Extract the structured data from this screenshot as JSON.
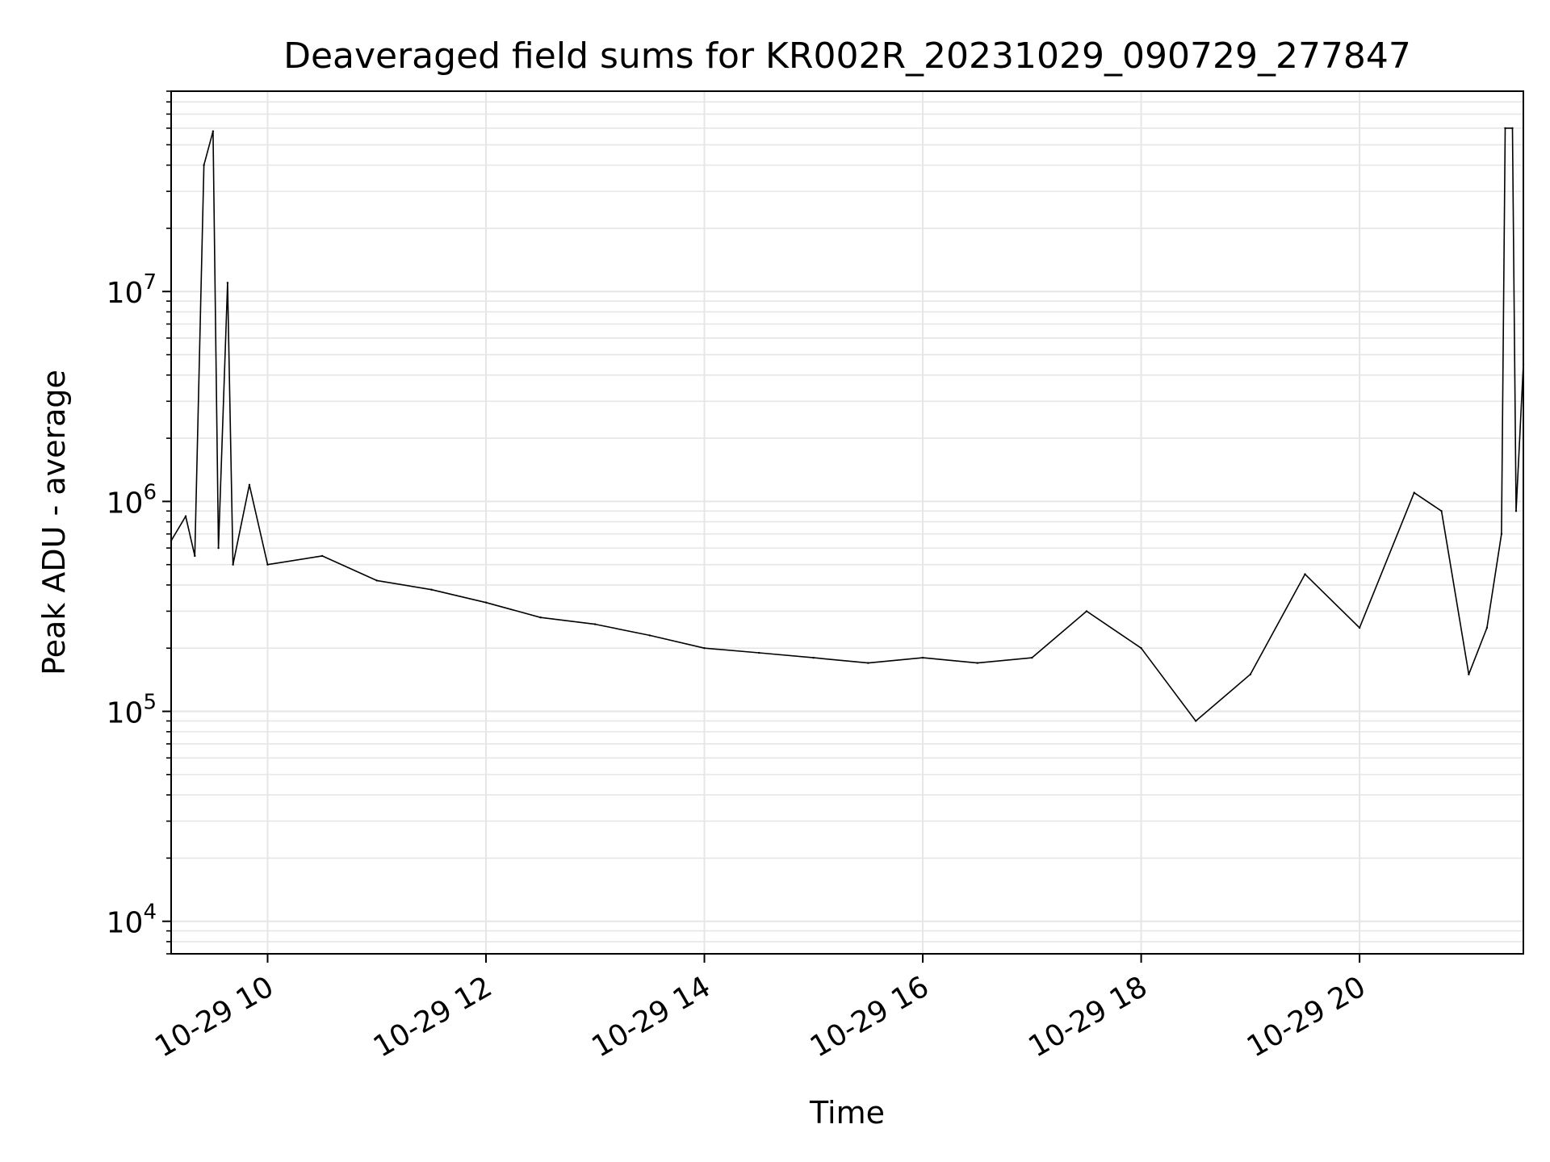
{
  "chart_data": {
    "type": "line",
    "title": "Deaveraged field sums for KR002R_20231029_090729_277847",
    "xlabel": "Time",
    "ylabel": "Peak ADU - average",
    "x_scale": "time",
    "y_scale": "log",
    "xlim": [
      "2023-10-29 09:07",
      "2023-10-29 21:30"
    ],
    "ylim": [
      7000,
      90000000
    ],
    "grid": true,
    "legend": "none",
    "colors": {
      "line": "#000000",
      "grid": "#e6e6e6",
      "axes": "#000000"
    },
    "x_ticks": [
      {
        "value": "2023-10-29 10:00",
        "label": "10-29 10"
      },
      {
        "value": "2023-10-29 12:00",
        "label": "10-29 12"
      },
      {
        "value": "2023-10-29 14:00",
        "label": "10-29 14"
      },
      {
        "value": "2023-10-29 16:00",
        "label": "10-29 16"
      },
      {
        "value": "2023-10-29 18:00",
        "label": "10-29 18"
      },
      {
        "value": "2023-10-29 20:00",
        "label": "10-29 20"
      }
    ],
    "y_ticks": [
      {
        "value": 10000,
        "base": "10",
        "exp": "4"
      },
      {
        "value": 100000,
        "base": "10",
        "exp": "5"
      },
      {
        "value": 1000000,
        "base": "10",
        "exp": "6"
      },
      {
        "value": 10000000,
        "base": "10",
        "exp": "7"
      }
    ],
    "series": [
      {
        "points": [
          {
            "t": "2023-10-29 09:07",
            "y": 650000
          },
          {
            "t": "2023-10-29 09:15",
            "y": 850000
          },
          {
            "t": "2023-10-29 09:20",
            "y": 550000
          },
          {
            "t": "2023-10-29 09:25",
            "y": 40000000
          },
          {
            "t": "2023-10-29 09:30",
            "y": 58000000
          },
          {
            "t": "2023-10-29 09:33",
            "y": 600000
          },
          {
            "t": "2023-10-29 09:38",
            "y": 11000000
          },
          {
            "t": "2023-10-29 09:41",
            "y": 500000
          },
          {
            "t": "2023-10-29 09:50",
            "y": 1200000
          },
          {
            "t": "2023-10-29 10:00",
            "y": 500000
          },
          {
            "t": "2023-10-29 10:30",
            "y": 550000
          },
          {
            "t": "2023-10-29 11:00",
            "y": 420000
          },
          {
            "t": "2023-10-29 11:30",
            "y": 380000
          },
          {
            "t": "2023-10-29 12:00",
            "y": 330000
          },
          {
            "t": "2023-10-29 12:30",
            "y": 280000
          },
          {
            "t": "2023-10-29 13:00",
            "y": 260000
          },
          {
            "t": "2023-10-29 13:30",
            "y": 230000
          },
          {
            "t": "2023-10-29 14:00",
            "y": 200000
          },
          {
            "t": "2023-10-29 14:30",
            "y": 190000
          },
          {
            "t": "2023-10-29 15:00",
            "y": 180000
          },
          {
            "t": "2023-10-29 15:30",
            "y": 170000
          },
          {
            "t": "2023-10-29 16:00",
            "y": 180000
          },
          {
            "t": "2023-10-29 16:30",
            "y": 170000
          },
          {
            "t": "2023-10-29 17:00",
            "y": 180000
          },
          {
            "t": "2023-10-29 17:30",
            "y": 300000
          },
          {
            "t": "2023-10-29 18:00",
            "y": 200000
          },
          {
            "t": "2023-10-29 18:30",
            "y": 90000
          },
          {
            "t": "2023-10-29 19:00",
            "y": 150000
          },
          {
            "t": "2023-10-29 19:30",
            "y": 450000
          },
          {
            "t": "2023-10-29 20:00",
            "y": 250000
          },
          {
            "t": "2023-10-29 20:30",
            "y": 1100000
          },
          {
            "t": "2023-10-29 20:45",
            "y": 900000
          },
          {
            "t": "2023-10-29 21:00",
            "y": 150000
          },
          {
            "t": "2023-10-29 21:10",
            "y": 250000
          },
          {
            "t": "2023-10-29 21:18",
            "y": 700000
          },
          {
            "t": "2023-10-29 21:20",
            "y": 60000000
          },
          {
            "t": "2023-10-29 21:24",
            "y": 60000000
          },
          {
            "t": "2023-10-29 21:26",
            "y": 900000
          },
          {
            "t": "2023-10-29 21:30",
            "y": 4500000
          }
        ]
      }
    ]
  }
}
